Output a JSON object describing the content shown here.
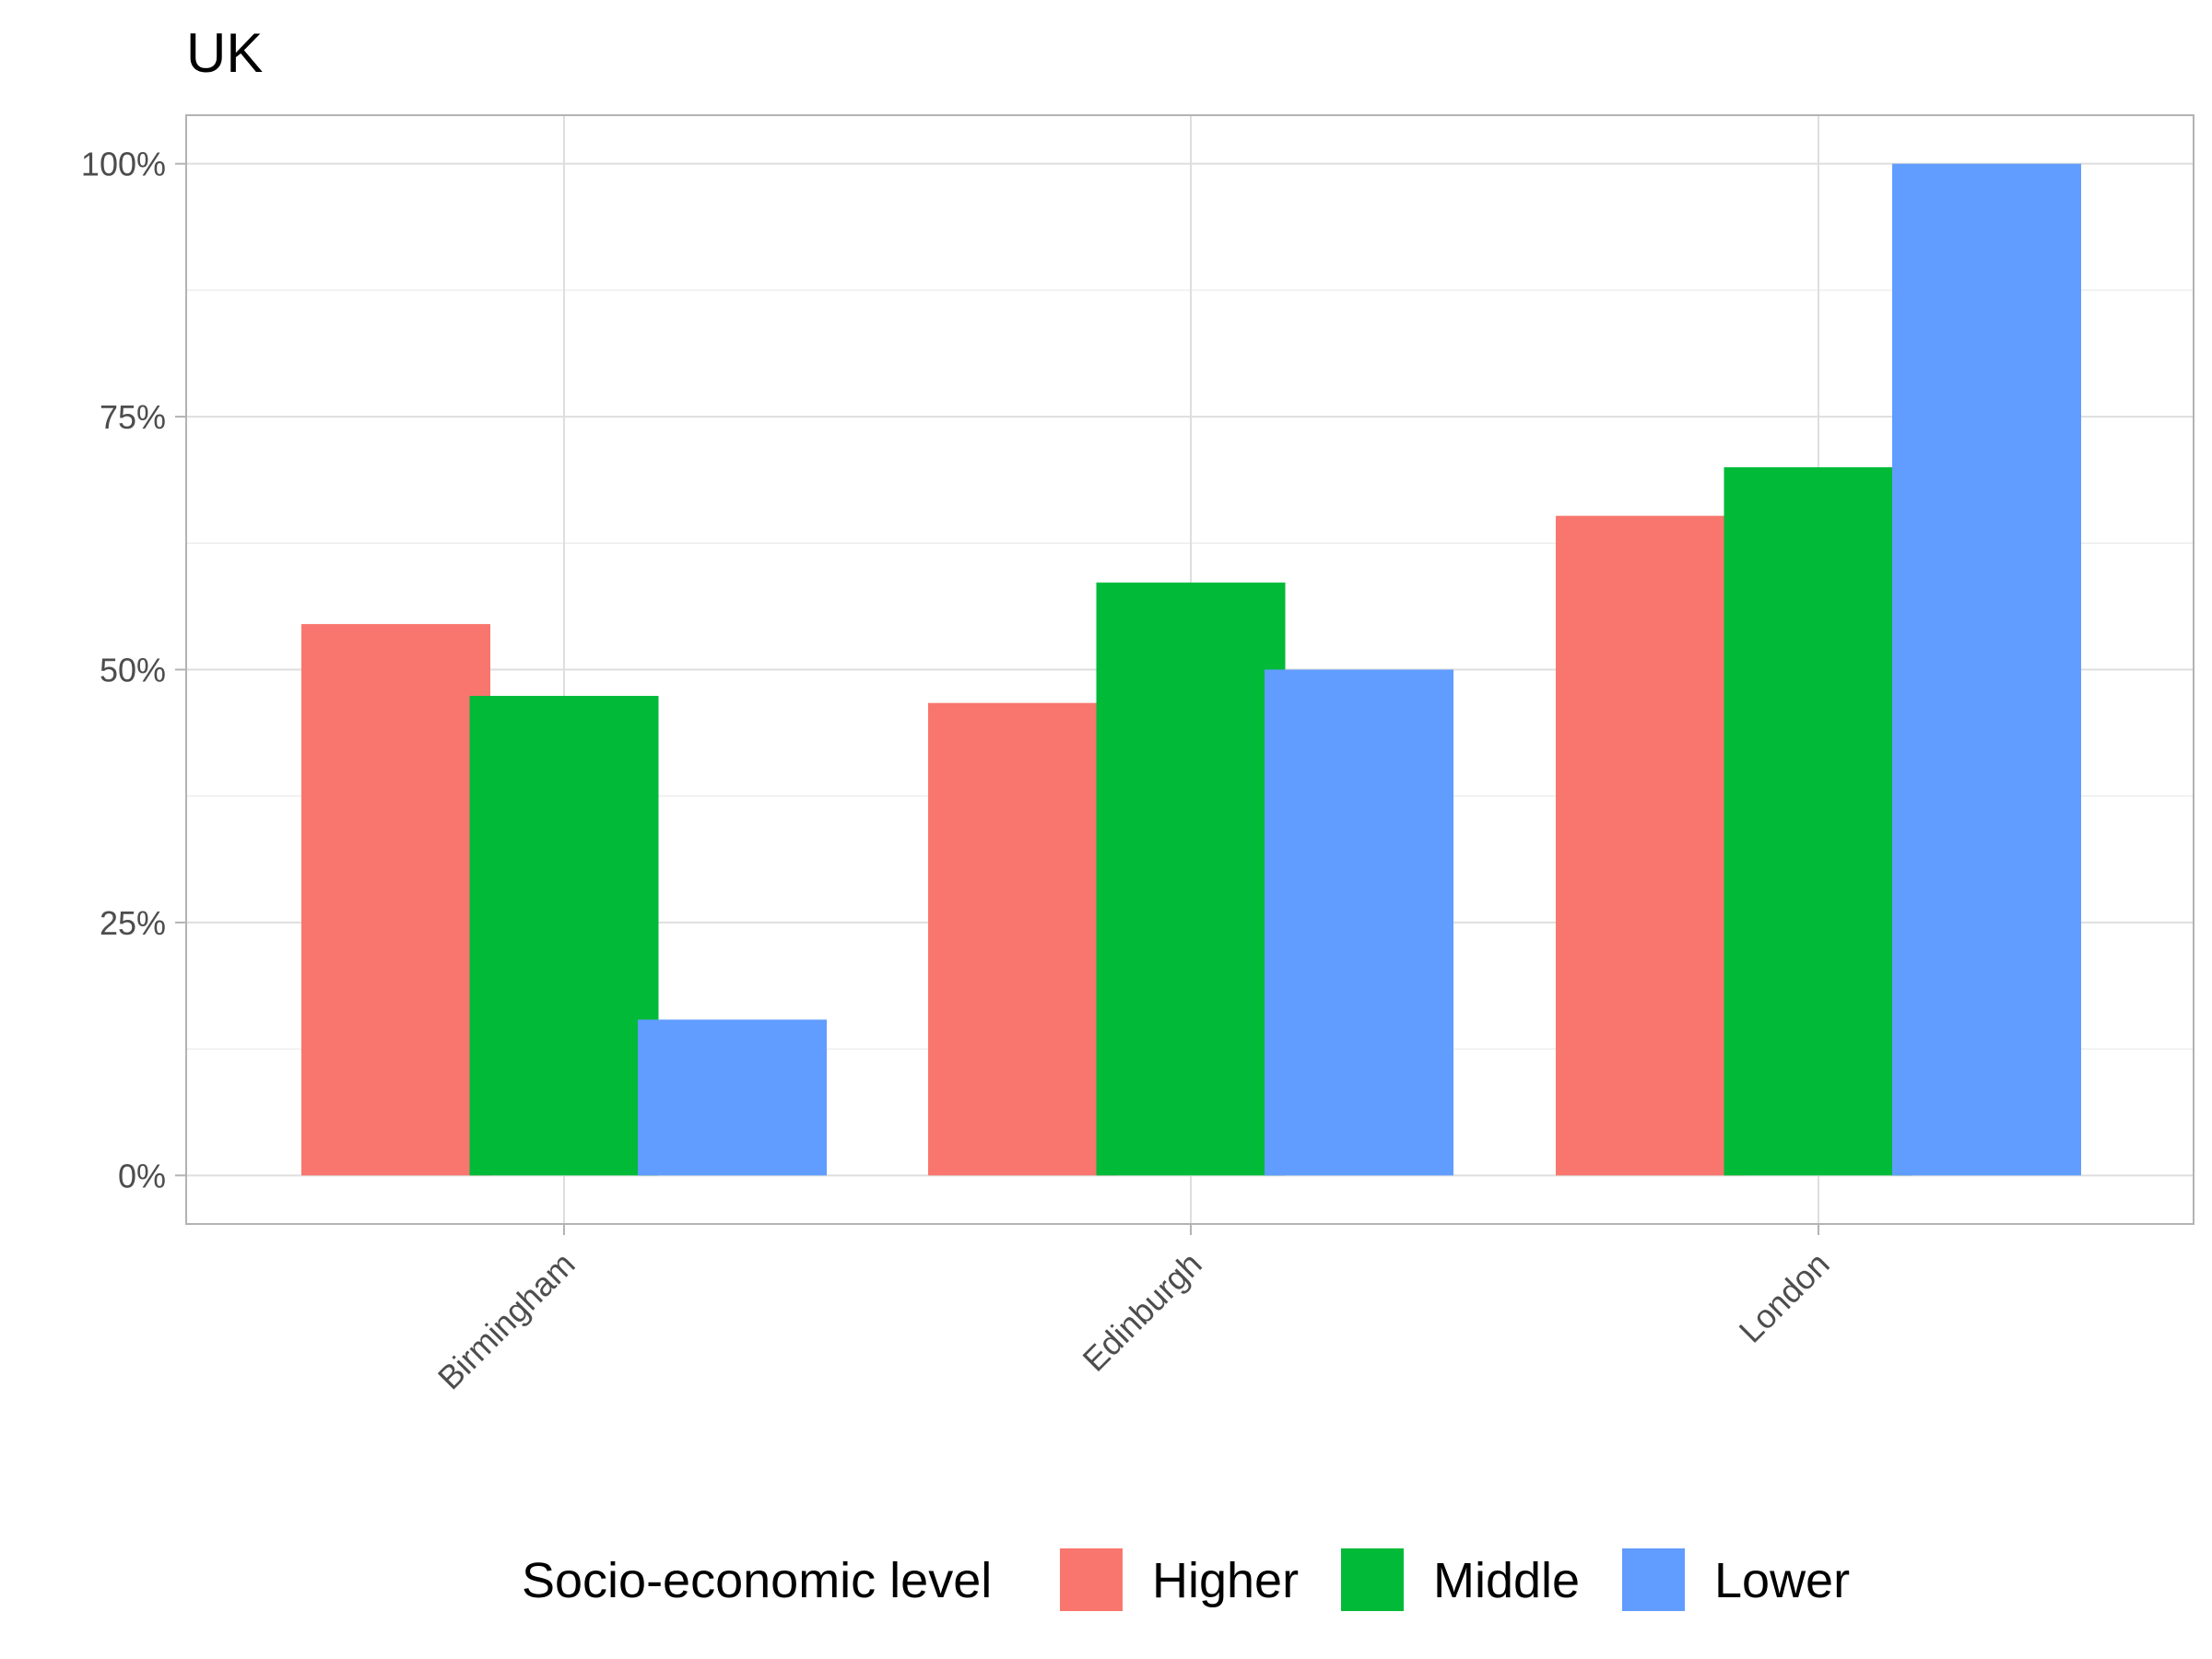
{
  "chart_data": {
    "type": "bar",
    "title": "UK",
    "xlabel": "",
    "ylabel": "",
    "categories": [
      "Birmingham",
      "Edinburgh",
      "London"
    ],
    "series": [
      {
        "name": "Higher",
        "color": "#F8766D",
        "values": [
          54.5,
          46.7,
          65.2
        ]
      },
      {
        "name": "Middle",
        "color": "#00BA38",
        "values": [
          47.4,
          58.6,
          70.0
        ]
      },
      {
        "name": "Lower",
        "color": "#619CFF",
        "values": [
          15.4,
          50.0,
          100.0
        ]
      }
    ],
    "ylim": [
      -4.8,
      104.8
    ],
    "yticks": [
      0,
      25,
      50,
      75,
      100
    ],
    "ytick_labels": [
      "0%",
      "25%",
      "50%",
      "75%",
      "100%"
    ],
    "grid": true,
    "legend": {
      "title": "Socio-economic level",
      "position": "bottom"
    }
  }
}
